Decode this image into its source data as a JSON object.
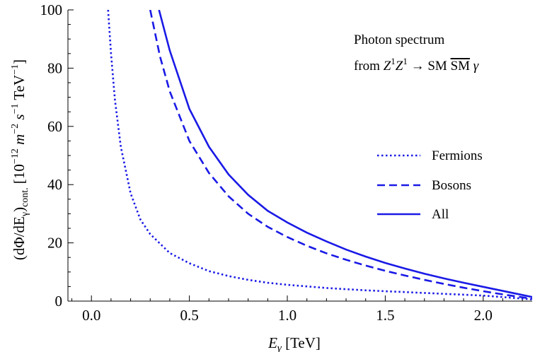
{
  "chart_data": {
    "type": "line",
    "xlabel": {
      "main": "E",
      "sub": "γ",
      "unit": " [TeV]"
    },
    "ylabel": {
      "p1": "(dΦ/dE",
      "p1sub": "γ",
      "p2": ")",
      "p2sub": "cont.",
      "p3": " [10",
      "p3sup": "−12",
      "p4": " m",
      "p4sup": "−2",
      "p5": " s",
      "p5sup": "−1",
      "p6": " TeV",
      "p6sup": "−1",
      "p7": "]"
    },
    "xlim": [
      -0.12,
      2.25
    ],
    "ylim": [
      0,
      100
    ],
    "xticks": [
      0.0,
      0.5,
      1.0,
      1.5,
      2.0
    ],
    "xtick_labels": [
      "0.0",
      "0.5",
      "1.0",
      "1.5",
      "2.0"
    ],
    "yticks": [
      0,
      20,
      40,
      60,
      80,
      100
    ],
    "ytick_labels": [
      "0",
      "20",
      "40",
      "60",
      "80",
      "100"
    ],
    "annotation": {
      "line1": "Photon spectrum",
      "line2_a": "from ",
      "z1": "Z",
      "z1sup": "1",
      "z2": "Z",
      "z2sup": "1",
      "arrow": " → SM ",
      "smbar": "SM",
      "gamma": " γ"
    },
    "legend_placement": "right",
    "series": [
      {
        "name": "Fermions",
        "style": "dotted",
        "color": "#1a1ae6",
        "x": [
          0.085,
          0.1,
          0.12,
          0.15,
          0.2,
          0.25,
          0.3,
          0.4,
          0.5,
          0.6,
          0.7,
          0.8,
          0.9,
          1.0,
          1.2,
          1.4,
          1.6,
          1.8,
          2.0,
          2.25
        ],
        "y": [
          100,
          85,
          69,
          53,
          37,
          28,
          23,
          16.5,
          13,
          10.3,
          8.6,
          7.3,
          6.3,
          5.6,
          4.5,
          3.7,
          3.1,
          2.5,
          1.9,
          0.6
        ]
      },
      {
        "name": "Bosons",
        "style": "dashed",
        "color": "#1a1ae6",
        "x": [
          0.3,
          0.35,
          0.4,
          0.5,
          0.6,
          0.7,
          0.8,
          0.9,
          1.0,
          1.1,
          1.2,
          1.3,
          1.4,
          1.5,
          1.6,
          1.7,
          1.8,
          1.9,
          2.0,
          2.1,
          2.25
        ],
        "y": [
          100,
          84,
          72,
          55,
          44,
          36,
          30,
          25.5,
          22,
          19,
          16.4,
          14.2,
          12.2,
          10.4,
          8.8,
          7.3,
          5.9,
          4.6,
          3.4,
          2.3,
          0.8
        ]
      },
      {
        "name": "All",
        "style": "solid",
        "color": "#1a1ae6",
        "x": [
          0.345,
          0.4,
          0.5,
          0.6,
          0.7,
          0.8,
          0.9,
          1.0,
          1.1,
          1.2,
          1.3,
          1.4,
          1.5,
          1.6,
          1.7,
          1.8,
          1.9,
          2.0,
          2.1,
          2.25
        ],
        "y": [
          100,
          86,
          66,
          53,
          43.5,
          36.5,
          31,
          27,
          23.5,
          20.5,
          17.7,
          15.3,
          13.1,
          11.2,
          9.4,
          7.8,
          6.3,
          4.9,
          3.5,
          1.4
        ]
      }
    ]
  }
}
